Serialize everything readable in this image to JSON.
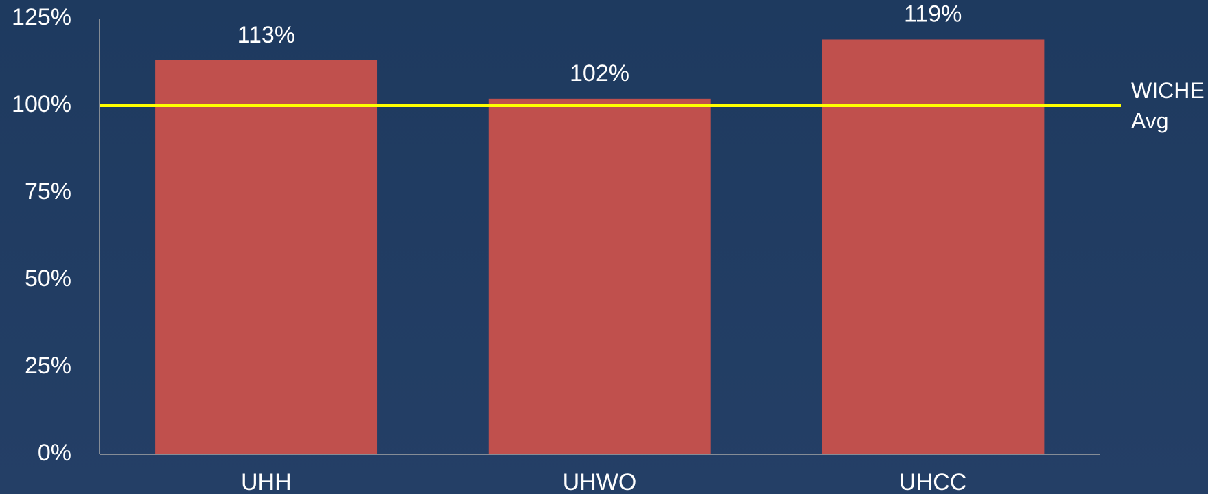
{
  "chart_data": {
    "type": "bar",
    "categories": [
      "UHH",
      "UHWO",
      "UHCC"
    ],
    "values": [
      113,
      102,
      119
    ],
    "value_labels": [
      "113%",
      "102%",
      "119%"
    ],
    "color": "#c0504d",
    "ylim": [
      0,
      125
    ],
    "yticks": [
      {
        "value": 0,
        "label": "0%"
      },
      {
        "value": 25,
        "label": "25%"
      },
      {
        "value": 50,
        "label": "50%"
      },
      {
        "value": 75,
        "label": "75%"
      },
      {
        "value": 100,
        "label": "100%"
      },
      {
        "value": 125,
        "label": "125%"
      }
    ],
    "grid": false,
    "reference_line": {
      "value": 100,
      "label": "WICHE Avg",
      "color": "#ffff00"
    }
  }
}
